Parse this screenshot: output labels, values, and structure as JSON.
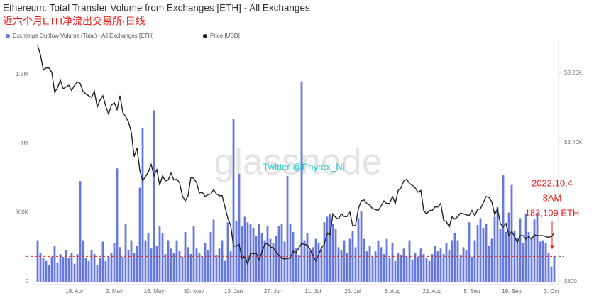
{
  "chart_data": {
    "type": "bar-line",
    "title": "Ethereum: Total Transfer Volume from Exchanges [ETH] - All Exchanges",
    "subtitle": "近六个月ETH净流出交易所·日线",
    "watermark": "glassnode",
    "credit": "Twitter @Phyrex_Ni",
    "annotation": [
      "2022.10.4",
      "8AM",
      "183,109 ETH"
    ],
    "categories": [
      null,
      null,
      null,
      null,
      null,
      null,
      null,
      null,
      null,
      null,
      null,
      null,
      null,
      "18. Apr",
      null,
      null,
      null,
      null,
      null,
      null,
      null,
      null,
      null,
      null,
      null,
      null,
      null,
      "2. May",
      null,
      null,
      null,
      null,
      null,
      null,
      null,
      null,
      null,
      null,
      null,
      null,
      null,
      "16. May",
      null,
      null,
      null,
      null,
      null,
      null,
      null,
      null,
      null,
      null,
      null,
      null,
      null,
      "30. May",
      null,
      null,
      null,
      null,
      null,
      null,
      null,
      null,
      null,
      null,
      null,
      null,
      null,
      "13. Jun",
      null,
      null,
      null,
      null,
      null,
      null,
      null,
      null,
      null,
      null,
      null,
      null,
      null,
      "27. Jun",
      null,
      null,
      null,
      null,
      null,
      null,
      null,
      null,
      null,
      null,
      null,
      null,
      null,
      "11. Jul",
      null,
      null,
      null,
      null,
      null,
      null,
      null,
      null,
      null,
      null,
      null,
      null,
      null,
      "25. Jul",
      null,
      null,
      null,
      null,
      null,
      null,
      null,
      null,
      null,
      null,
      null,
      null,
      null,
      "8. Aug",
      null,
      null,
      null,
      null,
      null,
      null,
      null,
      null,
      null,
      null,
      null,
      null,
      null,
      "22. Aug",
      null,
      null,
      null,
      null,
      null,
      null,
      null,
      null,
      null,
      null,
      null,
      null,
      null,
      "5. Sep",
      null,
      null,
      null,
      null,
      null,
      null,
      null,
      null,
      null,
      null,
      null,
      null,
      null,
      "19. Sep",
      null,
      null,
      null,
      null,
      null,
      null,
      null,
      null,
      null,
      null,
      null,
      null,
      null,
      "3. Oct",
      null
    ],
    "series": [
      {
        "name": "Exchange Outflow Volume (Total) - All Exchanges [ETH]",
        "color": "#6478e0",
        "values": [
          300000,
          210000,
          170000,
          150000,
          120000,
          180000,
          260000,
          140000,
          200000,
          180000,
          230000,
          170000,
          210000,
          130000,
          200000,
          728000,
          300000,
          170000,
          150000,
          230000,
          200000,
          120000,
          170000,
          290000,
          150000,
          180000,
          210000,
          280000,
          820000,
          250000,
          180000,
          420000,
          230000,
          300000,
          210000,
          260000,
          680000,
          1110000,
          300000,
          350000,
          240000,
          1240000,
          260000,
          400000,
          350000,
          200000,
          300000,
          240000,
          210000,
          300000,
          220000,
          180000,
          360000,
          250000,
          200000,
          400000,
          240000,
          210000,
          180000,
          280000,
          230000,
          360000,
          450000,
          190000,
          240000,
          300000,
          150000,
          430000,
          220000,
          1180000,
          440000,
          780000,
          400000,
          470000,
          430000,
          420000,
          390000,
          330000,
          420000,
          350000,
          300000,
          400000,
          310000,
          280000,
          330000,
          400000,
          420000,
          290000,
          765000,
          420000,
          360000,
          240000,
          190000,
          1450000,
          300000,
          350000,
          220000,
          250000,
          310000,
          280000,
          240000,
          430000,
          470000,
          490000,
          420000,
          380000,
          250000,
          230000,
          300000,
          210000,
          310000,
          370000,
          250000,
          460000,
          510000,
          310000,
          220000,
          260000,
          180000,
          220000,
          300000,
          250000,
          200000,
          310000,
          170000,
          280000,
          150000,
          210000,
          190000,
          240000,
          180000,
          300000,
          160000,
          210000,
          180000,
          240000,
          200000,
          170000,
          150000,
          200000,
          260000,
          220000,
          240000,
          200000,
          280000,
          230000,
          300000,
          350000,
          300000,
          190000,
          250000,
          230000,
          430000,
          180000,
          300000,
          410000,
          460000,
          390000,
          420000,
          260000,
          310000,
          470000,
          540000,
          380000,
          770000,
          360000,
          500000,
          700000,
          370000,
          320000,
          460000,
          280000,
          490000,
          360000,
          320000,
          450000,
          500000,
          290000,
          300000,
          280000,
          210000,
          110000,
          183109
        ]
      },
      {
        "name": "Price [USD]",
        "color": "#222222",
        "axis": "y2",
        "values": [
          3520,
          3410,
          3240,
          3260,
          3260,
          3210,
          2980,
          3030,
          3120,
          3020,
          3040,
          3060,
          3000,
          3060,
          3100,
          3080,
          2990,
          2960,
          2940,
          2920,
          2990,
          2810,
          2890,
          2940,
          2820,
          2730,
          2830,
          2860,
          2780,
          2940,
          2750,
          2700,
          2640,
          2520,
          2240,
          2340,
          2080,
          1960,
          2010,
          2060,
          2150,
          2020,
          2090,
          1910,
          2020,
          1960,
          1970,
          2050,
          1970,
          1980,
          1940,
          1790,
          1730,
          1790,
          2000,
          1990,
          1940,
          1820,
          1830,
          1780,
          1800,
          1810,
          1860,
          1810,
          1790,
          1790,
          1660,
          1530,
          1450,
          1210,
          1210,
          1230,
          1070,
          1090,
          1000,
          1130,
          1120,
          1130,
          1050,
          1140,
          1230,
          1240,
          1200,
          1190,
          1140,
          1100,
          1070,
          1060,
          1070,
          1070,
          1150,
          1130,
          1190,
          1240,
          1230,
          1220,
          1170,
          1100,
          1040,
          1110,
          1190,
          1230,
          1360,
          1340,
          1580,
          1540,
          1520,
          1580,
          1550,
          1550,
          1600,
          1440,
          1450,
          1640,
          1730,
          1740,
          1700,
          1680,
          1640,
          1630,
          1620,
          1670,
          1730,
          1700,
          1700,
          1780,
          1700,
          1850,
          1880,
          1960,
          1980,
          1930,
          1910,
          1880,
          1830,
          1850,
          1620,
          1580,
          1620,
          1620,
          1660,
          1660,
          1700,
          1510,
          1490,
          1430,
          1550,
          1520,
          1550,
          1590,
          1580,
          1570,
          1560,
          1620,
          1560,
          1630,
          1640,
          1710,
          1780,
          1770,
          1720,
          1570,
          1640,
          1470,
          1430,
          1470,
          1330,
          1380,
          1320,
          1250,
          1330,
          1330,
          1290,
          1320,
          1290,
          1340,
          1330,
          1330,
          1330,
          1320,
          1310,
          1320,
          1360
        ]
      }
    ],
    "ylim": [
      0,
      1720000
    ],
    "yticks": [
      0,
      {
        "value": 500000,
        "label": "500K"
      },
      {
        "value": 1000000,
        "label": "1M"
      },
      {
        "value": 1500000,
        "label": "1.5M"
      }
    ],
    "y2lim": [
      800,
      3535
    ],
    "y2ticks": [
      {
        "value": 800,
        "label": "$800"
      },
      {
        "value": 2400,
        "label": "$2.40K"
      },
      {
        "value": 3200,
        "label": "$3.20K"
      }
    ],
    "annotation_color": "#e8231f"
  }
}
